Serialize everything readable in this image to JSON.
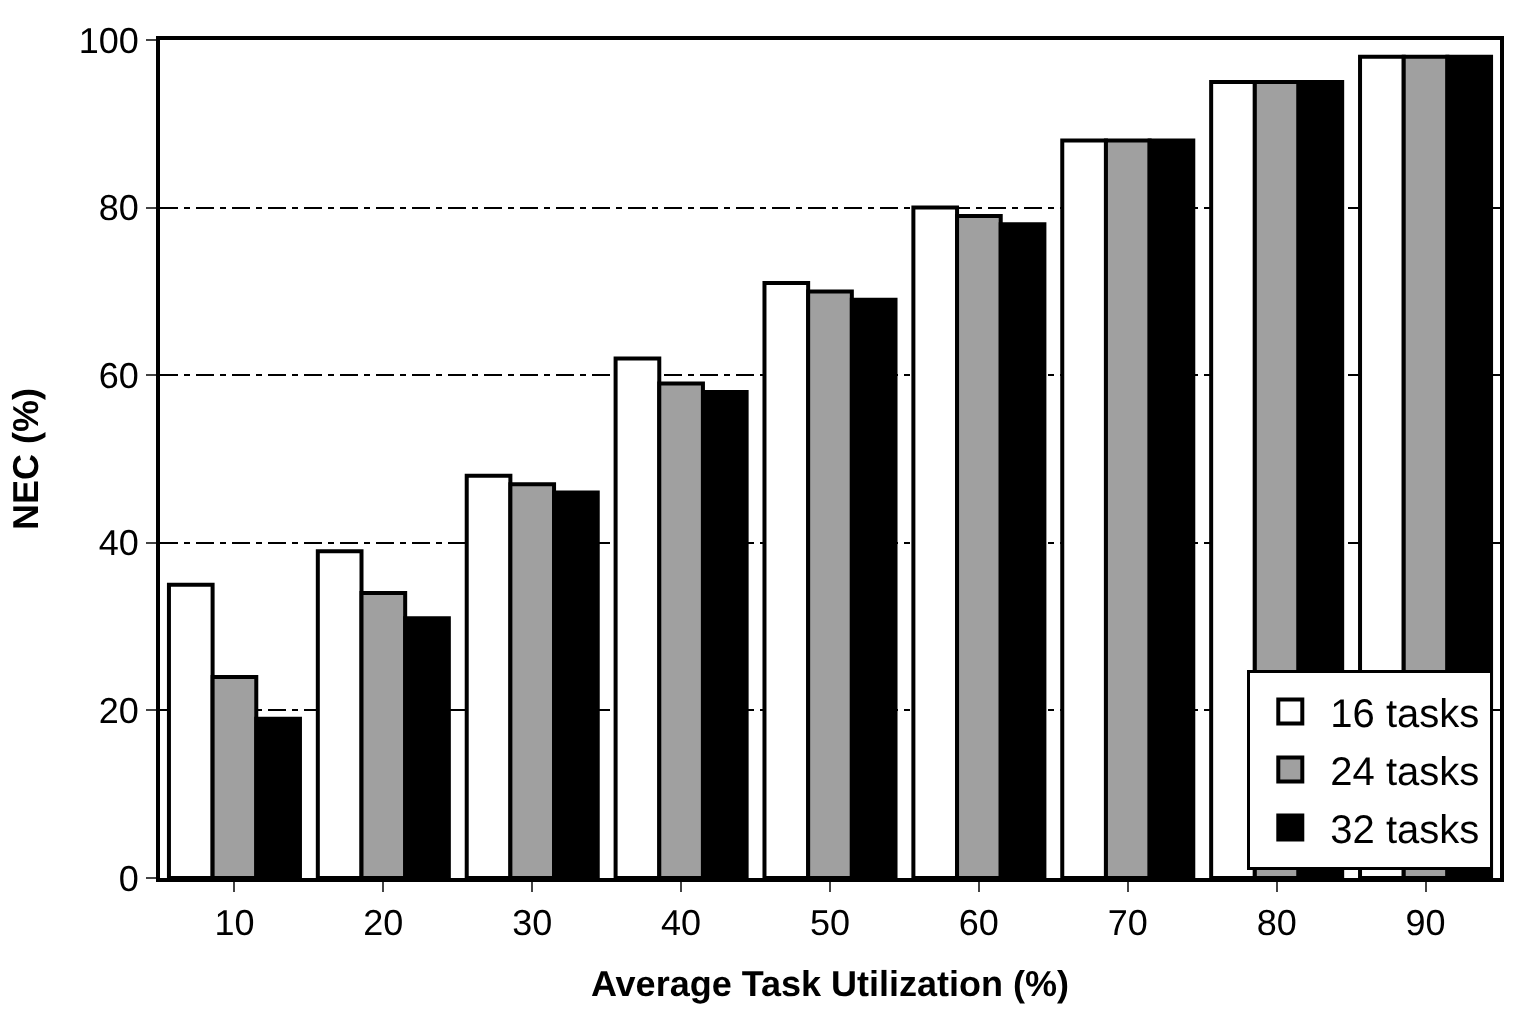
{
  "chart_data": {
    "type": "bar",
    "xlabel": "Average Task Utilization (%)",
    "ylabel": "NEC (%)",
    "categories": [
      "10",
      "20",
      "30",
      "40",
      "50",
      "60",
      "70",
      "80",
      "90"
    ],
    "series": [
      {
        "name": "16 tasks",
        "color": "#ffffff",
        "values": [
          35,
          39,
          48,
          62,
          71,
          80,
          88,
          95,
          98
        ]
      },
      {
        "name": "24 tasks",
        "color": "#a0a0a0",
        "values": [
          24,
          34,
          47,
          59,
          70,
          79,
          88,
          95,
          98
        ]
      },
      {
        "name": "32 tasks",
        "color": "#000000",
        "values": [
          19,
          31,
          46,
          58,
          69,
          78,
          88,
          95,
          98
        ]
      }
    ],
    "ylim": [
      0,
      100
    ],
    "yticks": [
      0,
      20,
      40,
      60,
      80,
      100
    ],
    "grid": "y",
    "legend": "bottom right"
  }
}
